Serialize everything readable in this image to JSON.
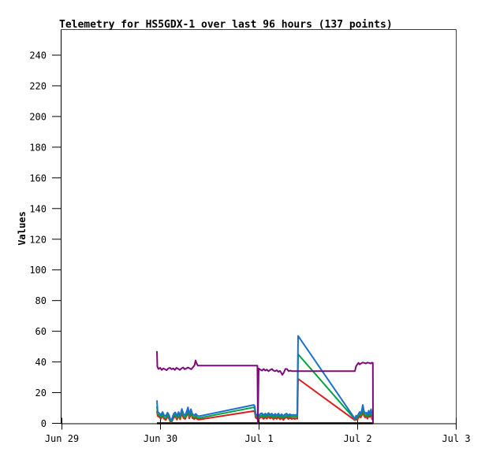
{
  "window": {
    "background": "#ffffff"
  },
  "chart_data": {
    "type": "line",
    "title": "Telemetry for HS5GDX-1 over last 96 hours (137 points)",
    "ylabel": "Values",
    "xlabel": "",
    "grid": false,
    "legend_position": "none",
    "point_count_shown": "137 points",
    "station": "HS5GDX-1",
    "window_hours": 96,
    "colors": {
      "background": "#ffffff",
      "axis": "#000000",
      "border_top_right": "#404040",
      "text": "#000000"
    },
    "y_axis": {
      "min": 0,
      "max": 240,
      "step": 20,
      "tick_labels": [
        "0",
        "20",
        "40",
        "60",
        "80",
        "100",
        "120",
        "140",
        "160",
        "180",
        "200",
        "220",
        "240"
      ]
    },
    "x_axis": {
      "unit": "hours_from_Jun29_0000",
      "min": 0,
      "max": 96,
      "ticks": [
        {
          "label": "Jun 29",
          "hour": 0
        },
        {
          "label": "Jun 30",
          "hour": 24
        },
        {
          "label": "Jul 1",
          "hour": 48
        },
        {
          "label": "Jul 2",
          "hour": 72
        },
        {
          "label": "Jul 3",
          "hour": 96
        }
      ]
    },
    "series": [
      {
        "name": "channel-black-zero",
        "color": "#000000",
        "width": 2.4,
        "points": [
          [
            23.23,
            0
          ],
          [
            75.84,
            0
          ]
        ]
      },
      {
        "name": "channel-red",
        "color": "#df1b1b",
        "width": 2,
        "points": [
          [
            23.23,
            8.0
          ],
          [
            23.4,
            4.8
          ],
          [
            23.8,
            4.0
          ],
          [
            24.2,
            3.0
          ],
          [
            24.6,
            4.8
          ],
          [
            25.0,
            2.8
          ],
          [
            25.4,
            2.2
          ],
          [
            25.8,
            4.4
          ],
          [
            26.2,
            2.8
          ],
          [
            26.5,
            1.0
          ],
          [
            26.7,
            0.6
          ],
          [
            26.9,
            1.4
          ],
          [
            27.3,
            3.6
          ],
          [
            27.7,
            4.6
          ],
          [
            28.1,
            2.4
          ],
          [
            28.5,
            4.8
          ],
          [
            28.9,
            2.6
          ],
          [
            29.3,
            6.4
          ],
          [
            29.7,
            3.4
          ],
          [
            30.1,
            2.8
          ],
          [
            30.5,
            5.2
          ],
          [
            30.8,
            7.2
          ],
          [
            31.1,
            3.2
          ],
          [
            31.5,
            6.2
          ],
          [
            31.9,
            3.4
          ],
          [
            32.3,
            2.8
          ],
          [
            32.7,
            3.6
          ],
          [
            33.0,
            2.8
          ],
          [
            33.41,
            2.4
          ],
          [
            46.85,
            8.0
          ],
          [
            47.05,
            7.2
          ],
          [
            47.25,
            3.8
          ],
          [
            47.6,
            3.0
          ],
          [
            48.0,
            2.6
          ],
          [
            48.4,
            3.8
          ],
          [
            48.8,
            4.2
          ],
          [
            49.2,
            2.8
          ],
          [
            49.6,
            4.0
          ],
          [
            50.0,
            3.0
          ],
          [
            50.4,
            4.4
          ],
          [
            50.8,
            3.2
          ],
          [
            51.2,
            4.0
          ],
          [
            51.6,
            2.6
          ],
          [
            52.0,
            3.8
          ],
          [
            52.4,
            2.8
          ],
          [
            52.8,
            4.0
          ],
          [
            53.2,
            2.6
          ],
          [
            53.6,
            3.6
          ],
          [
            54.0,
            2.2
          ],
          [
            54.4,
            3.4
          ],
          [
            54.8,
            4.0
          ],
          [
            55.2,
            2.8
          ],
          [
            55.6,
            3.6
          ],
          [
            56.0,
            2.8
          ],
          [
            56.4,
            3.2
          ],
          [
            56.8,
            2.8
          ],
          [
            57.1,
            3.2
          ],
          [
            57.41,
            3.0
          ],
          [
            57.6,
            29.0
          ],
          [
            71.42,
            2.0
          ],
          [
            71.71,
            2.6
          ],
          [
            72.0,
            2.2
          ],
          [
            72.29,
            3.4
          ],
          [
            72.58,
            4.6
          ],
          [
            72.86,
            3.8
          ],
          [
            73.15,
            5.6
          ],
          [
            73.34,
            7.6
          ],
          [
            73.63,
            5.0
          ],
          [
            73.92,
            3.8
          ],
          [
            74.21,
            4.4
          ],
          [
            74.5,
            3.0
          ],
          [
            74.78,
            5.2
          ],
          [
            75.07,
            4.0
          ],
          [
            75.36,
            6.0
          ],
          [
            75.6,
            2.6
          ],
          [
            75.84,
            2.4
          ]
        ]
      },
      {
        "name": "channel-green",
        "color": "#00a23c",
        "width": 2,
        "points": [
          [
            23.23,
            11.0
          ],
          [
            23.4,
            6.0
          ],
          [
            23.8,
            5.2
          ],
          [
            24.2,
            4.0
          ],
          [
            24.6,
            6.0
          ],
          [
            25.0,
            3.8
          ],
          [
            25.4,
            3.2
          ],
          [
            25.8,
            5.6
          ],
          [
            26.2,
            3.8
          ],
          [
            26.5,
            1.6
          ],
          [
            26.7,
            1.0
          ],
          [
            26.9,
            2.0
          ],
          [
            27.3,
            4.8
          ],
          [
            27.7,
            5.8
          ],
          [
            28.1,
            3.4
          ],
          [
            28.5,
            6.0
          ],
          [
            28.9,
            3.6
          ],
          [
            29.3,
            7.8
          ],
          [
            29.7,
            4.6
          ],
          [
            30.1,
            3.8
          ],
          [
            30.5,
            6.4
          ],
          [
            30.8,
            8.6
          ],
          [
            31.1,
            4.4
          ],
          [
            31.5,
            7.6
          ],
          [
            31.9,
            4.6
          ],
          [
            32.3,
            3.8
          ],
          [
            32.7,
            4.8
          ],
          [
            33.0,
            3.8
          ],
          [
            33.41,
            3.4
          ],
          [
            46.85,
            10.4
          ],
          [
            47.05,
            9.6
          ],
          [
            47.25,
            5.0
          ],
          [
            47.6,
            4.2
          ],
          [
            48.0,
            3.8
          ],
          [
            48.4,
            5.0
          ],
          [
            48.8,
            5.4
          ],
          [
            49.2,
            4.0
          ],
          [
            49.6,
            5.2
          ],
          [
            50.0,
            4.2
          ],
          [
            50.4,
            5.6
          ],
          [
            50.8,
            4.4
          ],
          [
            51.2,
            5.2
          ],
          [
            51.6,
            3.8
          ],
          [
            52.0,
            5.0
          ],
          [
            52.4,
            4.0
          ],
          [
            52.8,
            5.2
          ],
          [
            53.2,
            3.8
          ],
          [
            53.6,
            4.8
          ],
          [
            54.0,
            3.4
          ],
          [
            54.4,
            4.6
          ],
          [
            54.8,
            5.2
          ],
          [
            55.2,
            4.0
          ],
          [
            55.6,
            4.8
          ],
          [
            56.0,
            4.0
          ],
          [
            56.4,
            4.4
          ],
          [
            56.8,
            4.0
          ],
          [
            57.1,
            4.4
          ],
          [
            57.41,
            4.2
          ],
          [
            57.6,
            45.0
          ],
          [
            71.42,
            2.6
          ],
          [
            71.71,
            3.8
          ],
          [
            72.0,
            3.2
          ],
          [
            72.29,
            4.6
          ],
          [
            72.58,
            6.0
          ],
          [
            72.86,
            5.0
          ],
          [
            73.15,
            7.2
          ],
          [
            73.34,
            9.6
          ],
          [
            73.63,
            6.4
          ],
          [
            73.92,
            5.0
          ],
          [
            74.21,
            5.6
          ],
          [
            74.5,
            4.2
          ],
          [
            74.78,
            6.6
          ],
          [
            75.07,
            5.2
          ],
          [
            75.36,
            7.4
          ],
          [
            75.6,
            3.8
          ],
          [
            75.84,
            3.2
          ]
        ]
      },
      {
        "name": "channel-blue",
        "color": "#1c6fd0",
        "width": 2,
        "points": [
          [
            23.23,
            15.0
          ],
          [
            23.4,
            7.5
          ],
          [
            23.8,
            6.6
          ],
          [
            24.2,
            5.4
          ],
          [
            24.6,
            7.4
          ],
          [
            25.0,
            5.2
          ],
          [
            25.4,
            4.6
          ],
          [
            25.8,
            7.0
          ],
          [
            26.2,
            5.2
          ],
          [
            26.5,
            2.6
          ],
          [
            26.7,
            1.8
          ],
          [
            26.9,
            3.0
          ],
          [
            27.3,
            6.2
          ],
          [
            27.7,
            7.2
          ],
          [
            28.1,
            4.8
          ],
          [
            28.5,
            7.4
          ],
          [
            28.9,
            5.0
          ],
          [
            29.3,
            9.4
          ],
          [
            29.7,
            6.0
          ],
          [
            30.1,
            5.2
          ],
          [
            30.5,
            8.0
          ],
          [
            30.8,
            10.4
          ],
          [
            31.1,
            5.8
          ],
          [
            31.5,
            9.2
          ],
          [
            31.9,
            6.0
          ],
          [
            32.3,
            5.2
          ],
          [
            32.7,
            6.2
          ],
          [
            33.0,
            5.2
          ],
          [
            33.41,
            4.6
          ],
          [
            46.85,
            12.0
          ],
          [
            47.05,
            11.0
          ],
          [
            47.25,
            6.2
          ],
          [
            47.6,
            5.4
          ],
          [
            48.0,
            5.0
          ],
          [
            48.4,
            6.2
          ],
          [
            48.8,
            6.6
          ],
          [
            49.2,
            5.2
          ],
          [
            49.6,
            6.4
          ],
          [
            50.0,
            5.4
          ],
          [
            50.4,
            6.8
          ],
          [
            50.8,
            5.6
          ],
          [
            51.2,
            6.4
          ],
          [
            51.6,
            5.0
          ],
          [
            52.0,
            6.2
          ],
          [
            52.4,
            5.2
          ],
          [
            52.8,
            6.4
          ],
          [
            53.2,
            5.0
          ],
          [
            53.6,
            6.0
          ],
          [
            54.0,
            4.6
          ],
          [
            54.4,
            5.8
          ],
          [
            54.8,
            6.4
          ],
          [
            55.2,
            5.2
          ],
          [
            55.6,
            6.0
          ],
          [
            56.0,
            5.2
          ],
          [
            56.4,
            5.6
          ],
          [
            56.8,
            5.2
          ],
          [
            57.1,
            5.6
          ],
          [
            57.41,
            5.4
          ],
          [
            57.6,
            57.0
          ],
          [
            71.42,
            3.0
          ],
          [
            71.71,
            5.0
          ],
          [
            72.0,
            4.4
          ],
          [
            72.29,
            6.0
          ],
          [
            72.58,
            7.4
          ],
          [
            72.86,
            6.4
          ],
          [
            73.15,
            9.0
          ],
          [
            73.34,
            12.0
          ],
          [
            73.63,
            8.0
          ],
          [
            73.92,
            6.4
          ],
          [
            74.21,
            7.0
          ],
          [
            74.5,
            5.6
          ],
          [
            74.78,
            8.2
          ],
          [
            75.07,
            6.6
          ],
          [
            75.36,
            9.2
          ],
          [
            75.6,
            5.0
          ],
          [
            75.84,
            4.2
          ]
        ]
      },
      {
        "name": "channel-purple",
        "color": "#7d0a7d",
        "width": 2,
        "points": [
          [
            23.23,
            47.0
          ],
          [
            23.33,
            37.0
          ],
          [
            23.6,
            35.4
          ],
          [
            24.0,
            36.2
          ],
          [
            24.4,
            34.8
          ],
          [
            24.8,
            35.8
          ],
          [
            25.2,
            35.2
          ],
          [
            25.6,
            34.6
          ],
          [
            26.0,
            35.8
          ],
          [
            26.4,
            36.2
          ],
          [
            26.8,
            35.2
          ],
          [
            27.2,
            35.8
          ],
          [
            27.6,
            34.8
          ],
          [
            28.0,
            36.2
          ],
          [
            28.4,
            35.6
          ],
          [
            28.8,
            34.8
          ],
          [
            29.2,
            35.8
          ],
          [
            29.6,
            36.4
          ],
          [
            30.0,
            35.2
          ],
          [
            30.4,
            35.8
          ],
          [
            30.8,
            36.4
          ],
          [
            31.2,
            35.8
          ],
          [
            31.6,
            35.2
          ],
          [
            32.0,
            36.6
          ],
          [
            32.4,
            38.0
          ],
          [
            32.64,
            41.0
          ],
          [
            32.9,
            39.0
          ],
          [
            33.2,
            37.6
          ],
          [
            33.41,
            37.6
          ],
          [
            47.7,
            37.6
          ],
          [
            47.81,
            0.0
          ],
          [
            48.0,
            35.8
          ],
          [
            48.4,
            35.0
          ],
          [
            48.8,
            34.4
          ],
          [
            49.2,
            35.4
          ],
          [
            49.6,
            34.4
          ],
          [
            50.0,
            35.0
          ],
          [
            50.4,
            34.0
          ],
          [
            50.8,
            34.8
          ],
          [
            51.2,
            35.4
          ],
          [
            51.6,
            34.4
          ],
          [
            52.0,
            34.0
          ],
          [
            52.4,
            34.6
          ],
          [
            52.8,
            33.6
          ],
          [
            53.2,
            34.2
          ],
          [
            53.6,
            32.4
          ],
          [
            53.76,
            31.6
          ],
          [
            54.1,
            33.0
          ],
          [
            54.5,
            35.4
          ],
          [
            54.9,
            35.4
          ],
          [
            55.3,
            34.0
          ],
          [
            55.7,
            34.4
          ],
          [
            56.1,
            34.0
          ],
          [
            56.45,
            34.0
          ],
          [
            71.42,
            34.0
          ],
          [
            71.7,
            37.0
          ],
          [
            72.0,
            38.4
          ],
          [
            72.3,
            39.4
          ],
          [
            72.6,
            38.4
          ],
          [
            72.9,
            39.0
          ],
          [
            73.3,
            39.6
          ],
          [
            73.7,
            39.4
          ],
          [
            74.1,
            39.0
          ],
          [
            74.5,
            39.6
          ],
          [
            74.9,
            39.4
          ],
          [
            75.3,
            39.0
          ],
          [
            75.6,
            39.6
          ],
          [
            75.8,
            39.4
          ],
          [
            75.84,
            0.0
          ]
        ]
      }
    ]
  }
}
